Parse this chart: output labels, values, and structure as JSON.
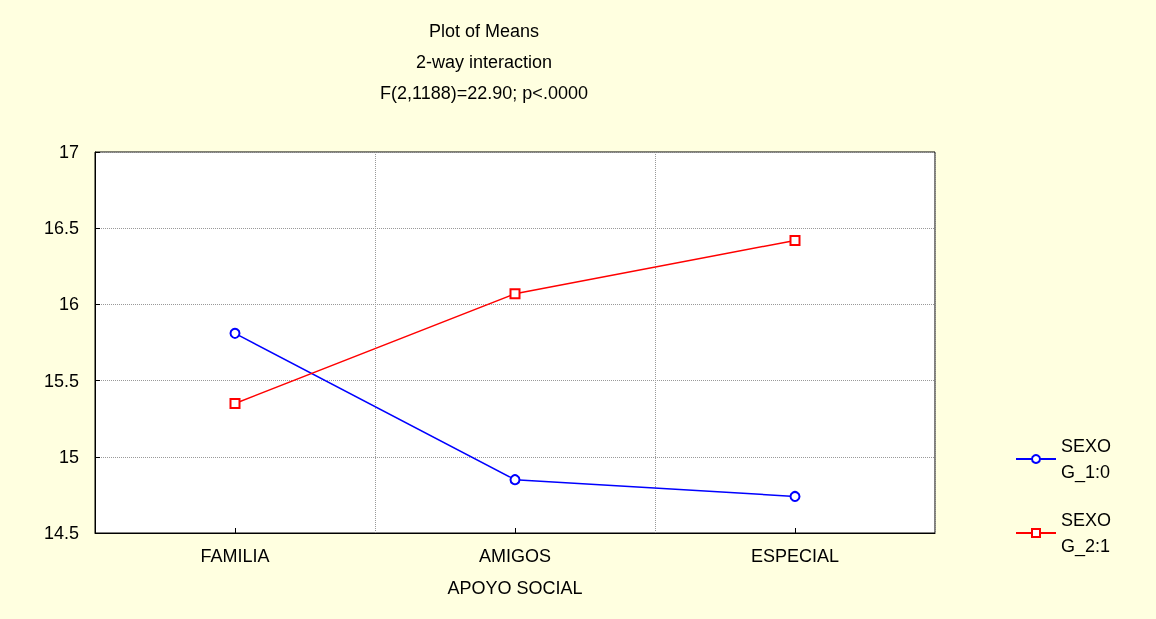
{
  "chart_data": {
    "type": "line",
    "title": "Plot of Means",
    "subtitle": "2-way interaction",
    "annotations": [
      "F(2,1188)=22.90; p<.0000"
    ],
    "xlabel": "APOYO SOCIAL",
    "categories": [
      "FAMILIA",
      "AMIGOS",
      "ESPECIAL"
    ],
    "series": [
      {
        "name": "SEXO G_1:0",
        "color": "#0000ff",
        "marker": "circle",
        "values": [
          15.81,
          14.85,
          14.74
        ]
      },
      {
        "name": "SEXO G_2:1",
        "color": "#ff0000",
        "marker": "square",
        "values": [
          15.35,
          16.07,
          16.42
        ]
      }
    ],
    "ylim": [
      14.5,
      17
    ],
    "yticks": [
      14.5,
      15,
      15.5,
      16,
      16.5,
      17
    ],
    "grid": true,
    "legend": "right",
    "line_style": "solid"
  }
}
